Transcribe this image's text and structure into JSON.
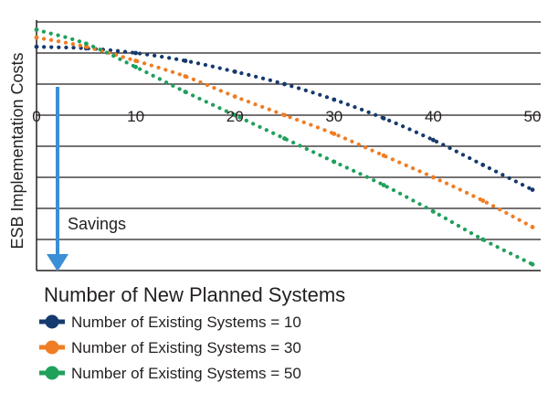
{
  "chart_data": {
    "type": "line",
    "xlabel": "Number of New Planned Systems",
    "ylabel": "ESB Implementation Costs",
    "x_ticks": [
      0,
      10,
      20,
      30,
      40,
      50
    ],
    "xlim": [
      0,
      50
    ],
    "ylim": [
      0,
      8
    ],
    "grid": true,
    "annotation": "Savings",
    "legend_position": "bottom-left",
    "series": [
      {
        "name": "Number of Existing Systems = 10",
        "color": "#163a6e",
        "x": [
          0,
          5,
          10,
          15,
          20,
          25,
          30,
          35,
          40,
          45,
          50
        ],
        "y": [
          7.2,
          7.15,
          7.0,
          6.75,
          6.4,
          6.0,
          5.5,
          4.9,
          4.2,
          3.4,
          2.6
        ]
      },
      {
        "name": "Number of Existing Systems = 30",
        "color": "#f07d23",
        "x": [
          0,
          5,
          10,
          15,
          20,
          25,
          30,
          35,
          40,
          45,
          50
        ],
        "y": [
          7.5,
          7.2,
          6.75,
          6.25,
          5.6,
          5.0,
          4.4,
          3.7,
          3.0,
          2.25,
          1.4
        ]
      },
      {
        "name": "Number of Existing Systems = 50",
        "color": "#1fa05b",
        "x": [
          0,
          5,
          10,
          15,
          20,
          25,
          30,
          35,
          40,
          45,
          50
        ],
        "y": [
          7.75,
          7.3,
          6.55,
          5.75,
          5.0,
          4.25,
          3.5,
          2.75,
          1.9,
          1.0,
          0.2
        ]
      }
    ]
  }
}
